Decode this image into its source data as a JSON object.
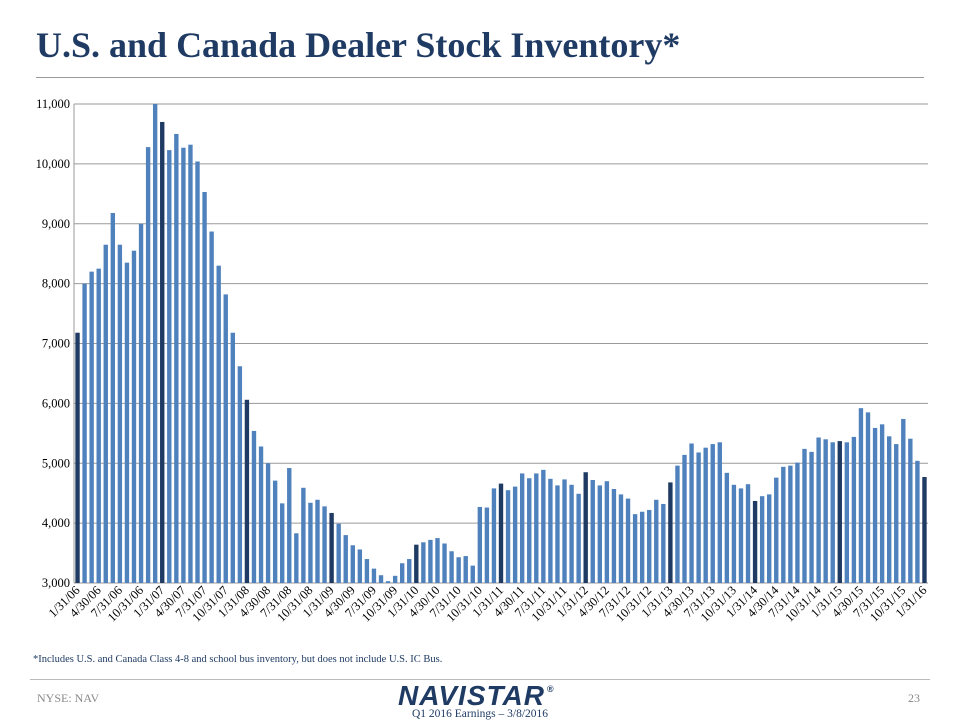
{
  "page": {
    "title": "U.S. and Canada Dealer Stock Inventory*",
    "footnote": "*Includes U.S. and Canada Class 4-8 and school bus inventory, but does not include U.S. IC Bus.",
    "ticker": "NYSE: NAV",
    "page_number": "23",
    "logo_text": "NAVISTAR",
    "logo_mark": "®",
    "subtitle": "Q1 2016 Earnings – 3/8/2016"
  },
  "colors": {
    "bar": "#4f81bd",
    "bar_highlight": "#1f3b63",
    "grid": "#9a9a9a",
    "axis_text": "#000000"
  },
  "chart_data": {
    "type": "bar",
    "title": "",
    "xlabel": "",
    "ylabel": "",
    "ylim": [
      3000,
      11000
    ],
    "yticks": [
      3000,
      4000,
      5000,
      6000,
      7000,
      8000,
      9000,
      10000,
      11000
    ],
    "ytick_labels": [
      "3,000",
      "4,000",
      "5,000",
      "6,000",
      "7,000",
      "8,000",
      "9,000",
      "10,000",
      "11,000"
    ],
    "grid": true,
    "highlight_every": 12,
    "tick_labels": [
      "1/31/06",
      "4/30/06",
      "7/31/06",
      "10/31/06",
      "1/31/07",
      "4/30/07",
      "7/31/07",
      "10/31/07",
      "1/31/08",
      "4/30/08",
      "7/31/08",
      "10/31/08",
      "1/31/09",
      "4/30/09",
      "7/31/09",
      "10/31/09",
      "1/31/10",
      "4/30/10",
      "7/31/10",
      "10/31/10",
      "1/31/11",
      "4/30/11",
      "7/31/11",
      "10/31/11",
      "1/31/12",
      "4/30/12",
      "7/31/12",
      "10/31/12",
      "1/31/13",
      "4/30/13",
      "7/31/13",
      "10/31/13",
      "1/31/14",
      "4/30/14",
      "7/31/14",
      "10/31/14",
      "1/31/15",
      "4/30/15",
      "7/31/15",
      "10/31/15",
      "1/31/16"
    ],
    "values": [
      7180,
      8000,
      8200,
      8250,
      8650,
      9180,
      8650,
      8350,
      8550,
      9000,
      10280,
      11000,
      10700,
      10230,
      10500,
      10270,
      10320,
      10040,
      9530,
      8870,
      8300,
      7820,
      7180,
      6620,
      6060,
      5540,
      5280,
      5000,
      4710,
      4330,
      4920,
      3830,
      4590,
      4340,
      4390,
      4280,
      4170,
      3990,
      3800,
      3630,
      3560,
      3400,
      3240,
      3130,
      3030,
      3120,
      3330,
      3400,
      3640,
      3680,
      3720,
      3750,
      3660,
      3530,
      3430,
      3450,
      3290,
      4270,
      4260,
      4580,
      4660,
      4550,
      4610,
      4830,
      4750,
      4830,
      4890,
      4740,
      4630,
      4730,
      4640,
      4490,
      4850,
      4720,
      4630,
      4700,
      4570,
      4480,
      4410,
      4150,
      4190,
      4220,
      4390,
      4320,
      4680,
      4960,
      5140,
      5330,
      5180,
      5260,
      5320,
      5350,
      4840,
      4640,
      4580,
      4650,
      4370,
      4450,
      4480,
      4760,
      4940,
      4960,
      5010,
      5240,
      5190,
      5430,
      5400,
      5350,
      5370,
      5350,
      5440,
      5920,
      5850,
      5590,
      5650,
      5450,
      5320,
      5740,
      5410,
      5040,
      4770
    ]
  }
}
